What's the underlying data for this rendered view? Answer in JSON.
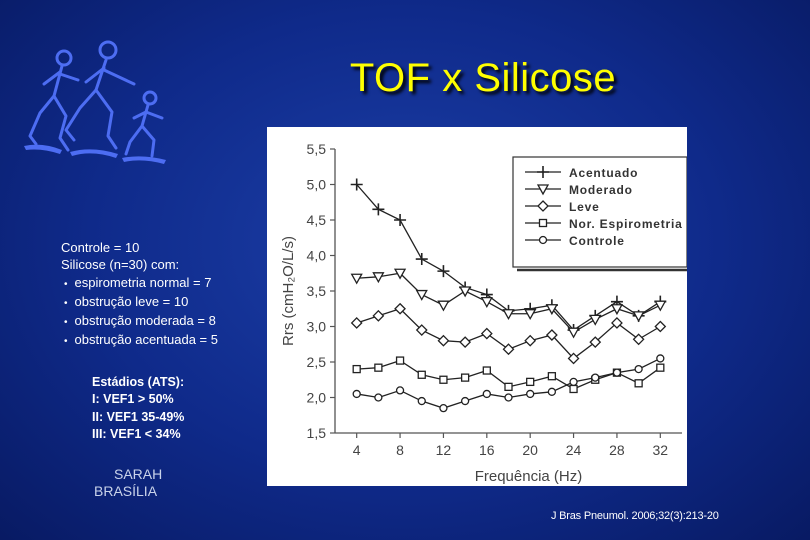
{
  "title": "TOF x Silicose",
  "info": {
    "line1": "Controle = 10",
    "line2": "Silicose  (n=30) com:",
    "bullets": [
      "espirometria normal = 7",
      "obstrução leve = 10",
      "obstrução moderada = 8",
      "obstrução acentuada = 5"
    ]
  },
  "stages": {
    "heading": "Estádios (ATS):",
    "items": [
      "I: VEF1 > 50%",
      "II: VEF1 35-49%",
      "III: VEF1 < 34%"
    ]
  },
  "institution": {
    "line1": "SARAH",
    "line2": "BRASÍLIA"
  },
  "reference": "J Bras Pneumol. 2006;32(3):213-20",
  "colors": {
    "background": "#0f2a8a",
    "title": "#ffff00",
    "text": "#ffffff"
  },
  "chart_data": {
    "type": "line",
    "title": "",
    "xlabel": "Frequência (Hz)",
    "ylabel": "Rrs (cmH₂O/L/s)",
    "xlim": [
      2,
      34
    ],
    "ylim": [
      1.5,
      5.5
    ],
    "xticks": [
      4,
      8,
      12,
      16,
      20,
      24,
      28,
      32
    ],
    "yticks": [
      1.5,
      2.0,
      2.5,
      3.0,
      3.5,
      4.0,
      4.5,
      5.0,
      5.5
    ],
    "x": [
      4,
      6,
      8,
      10,
      12,
      14,
      16,
      18,
      20,
      22,
      24,
      26,
      28,
      30,
      32
    ],
    "legend_position": "top-right",
    "series": [
      {
        "name": "Acentuado",
        "marker": "plus",
        "values": [
          5.0,
          4.65,
          4.5,
          3.95,
          3.78,
          3.55,
          3.45,
          3.22,
          3.25,
          3.3,
          2.95,
          3.15,
          3.35,
          3.15,
          3.35
        ]
      },
      {
        "name": "Moderado",
        "marker": "triangle",
        "values": [
          3.68,
          3.7,
          3.75,
          3.45,
          3.3,
          3.5,
          3.35,
          3.18,
          3.18,
          3.25,
          2.92,
          3.1,
          3.25,
          3.15,
          3.3
        ]
      },
      {
        "name": "Leve",
        "marker": "diamond",
        "values": [
          3.05,
          3.15,
          3.25,
          2.95,
          2.8,
          2.78,
          2.9,
          2.68,
          2.8,
          2.88,
          2.55,
          2.78,
          3.05,
          2.82,
          3.0
        ]
      },
      {
        "name": "Nor. Espirometria",
        "marker": "square",
        "values": [
          2.4,
          2.42,
          2.52,
          2.32,
          2.25,
          2.28,
          2.38,
          2.15,
          2.22,
          2.3,
          2.12,
          2.25,
          2.35,
          2.2,
          2.42
        ]
      },
      {
        "name": "Controle",
        "marker": "circle",
        "values": [
          2.05,
          2.0,
          2.1,
          1.95,
          1.85,
          1.95,
          2.05,
          2.0,
          2.05,
          2.08,
          2.22,
          2.28,
          2.35,
          2.4,
          2.55
        ]
      }
    ]
  }
}
